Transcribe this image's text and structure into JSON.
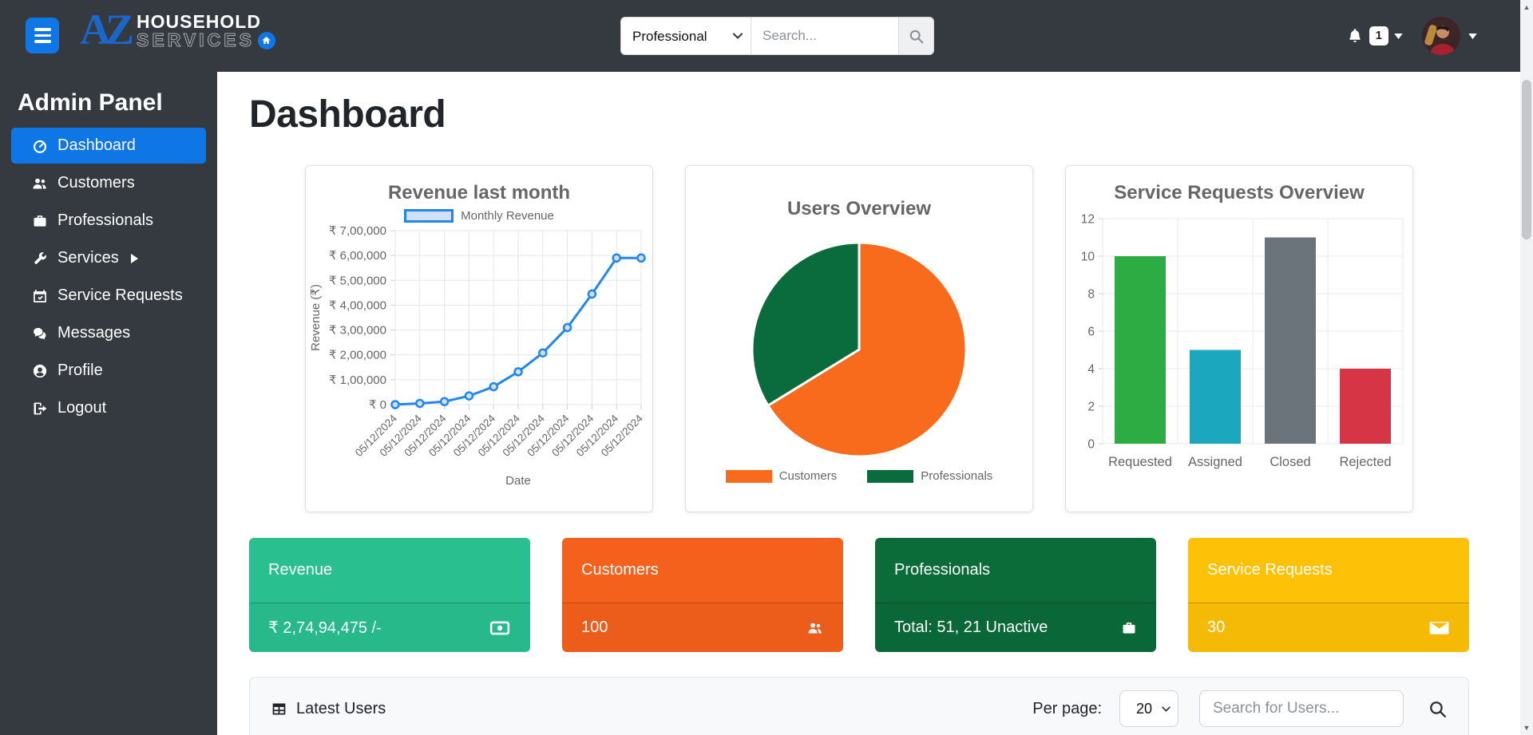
{
  "navbar": {
    "brand": {
      "az": "AZ",
      "line1": "HOUSEHOLD",
      "line2": "SERVICES"
    },
    "search": {
      "category_value": "Professional",
      "placeholder": "Search..."
    },
    "notification_count": "1"
  },
  "sidebar": {
    "heading": "Admin Panel",
    "items": [
      {
        "label": "Dashboard",
        "icon": "tachometer-icon",
        "active": true
      },
      {
        "label": "Customers",
        "icon": "users-icon"
      },
      {
        "label": "Professionals",
        "icon": "briefcase-icon"
      },
      {
        "label": "Services",
        "icon": "wrench-icon",
        "submenu": true
      },
      {
        "label": "Service Requests",
        "icon": "calendar-check-icon"
      },
      {
        "label": "Messages",
        "icon": "comments-icon"
      },
      {
        "label": "Profile",
        "icon": "user-circle-icon"
      },
      {
        "label": "Logout",
        "icon": "logout-icon"
      }
    ]
  },
  "page": {
    "title": "Dashboard"
  },
  "chart_data": {
    "revenue": {
      "type": "line",
      "title": "Revenue last month",
      "legend": "Monthly Revenue",
      "xlabel": "Date",
      "ylabel": "Revenue (₹)",
      "x": [
        "05/12/2024",
        "05/12/2024",
        "05/12/2024",
        "05/12/2024",
        "05/12/2024",
        "05/12/2024",
        "05/12/2024",
        "05/12/2024",
        "05/12/2024",
        "05/12/2024",
        "05/12/2024"
      ],
      "values": [
        0,
        5000,
        12000,
        35000,
        72000,
        132000,
        208000,
        310000,
        445000,
        590000,
        590000
      ],
      "ylim": [
        0,
        700000
      ],
      "ytick_labels": [
        "₹ 0",
        "₹ 1,00,000",
        "₹ 2,00,000",
        "₹ 3,00,000",
        "₹ 4,00,000",
        "₹ 5,00,000",
        "₹ 6,00,000",
        "₹ 7,00,000"
      ],
      "line_color": "#2287ec",
      "point_fill": "#cfe0f8",
      "grid": true
    },
    "users_overview": {
      "type": "pie",
      "title": "Users Overview",
      "slices": [
        {
          "label": "Customers",
          "value": 100,
          "color": "#f96b1c"
        },
        {
          "label": "Professionals",
          "value": 51,
          "color": "#0a6b3c"
        }
      ],
      "legend_position": "bottom"
    },
    "requests_overview": {
      "type": "bar",
      "title": "Service Requests Overview",
      "categories": [
        "Requested",
        "Assigned",
        "Closed",
        "Rejected"
      ],
      "values": [
        10,
        5,
        11,
        4
      ],
      "colors": [
        "#2dac44",
        "#1ba7bd",
        "#6b737b",
        "#d63545"
      ],
      "ylim": [
        0,
        12
      ],
      "ytick_step": 2,
      "grid": true
    }
  },
  "stat_cards": [
    {
      "label": "Revenue",
      "value": "₹ 2,74,94,475 /-",
      "icon": "money-bill-icon",
      "color": "#29bf8e"
    },
    {
      "label": "Customers",
      "value": "100",
      "icon": "users-icon",
      "color": "#f4611d"
    },
    {
      "label": "Professionals",
      "value": "Total: 51, 21 Unactive",
      "icon": "briefcase-icon",
      "color": "#0b6b39"
    },
    {
      "label": "Service Requests",
      "value": "30",
      "icon": "envelope-icon",
      "color": "#fdc107"
    }
  ],
  "latest_users": {
    "title": "Latest Users",
    "per_page_label": "Per page:",
    "per_page_value": "20",
    "search_placeholder": "Search for Users..."
  }
}
